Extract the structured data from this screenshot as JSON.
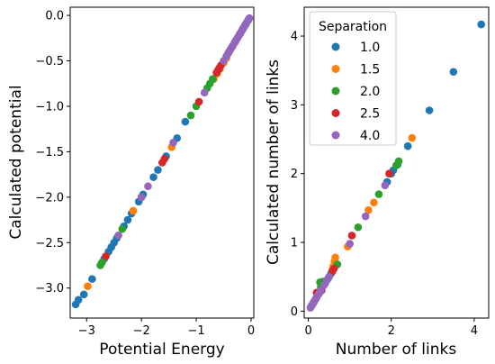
{
  "chart_data": [
    {
      "type": "scatter",
      "xlabel": "Potential Energy",
      "ylabel": "Calculated potential",
      "xlim": [
        -3.3,
        0.05
      ],
      "ylim": [
        -3.33,
        0.09
      ],
      "xticks": [
        -3,
        -2,
        -1,
        0
      ],
      "yticks": [
        -3.0,
        -2.5,
        -2.0,
        -1.5,
        -1.0,
        -0.5,
        0.0
      ],
      "xtick_labels": [
        "−3",
        "−2",
        "−1",
        "0"
      ],
      "ytick_labels": [
        "−3.0",
        "−2.5",
        "−2.0",
        "−1.5",
        "−1.0",
        "−0.5",
        "0.0"
      ],
      "grid": false,
      "series": [
        {
          "name": "1.0",
          "color": "#1f77b4",
          "x": [
            -3.2,
            -3.15,
            -3.05,
            -2.9,
            -2.68,
            -2.6,
            -2.55,
            -2.5,
            -2.45,
            -2.32,
            -2.25,
            -2.18,
            -2.05,
            -2.0,
            -1.97,
            -1.78,
            -1.7,
            -1.55,
            -1.35,
            -1.2,
            -0.35,
            -0.2,
            -0.15,
            -0.1,
            -0.05
          ],
          "y": [
            -3.18,
            -3.13,
            -3.07,
            -2.9,
            -2.68,
            -2.6,
            -2.55,
            -2.5,
            -2.45,
            -2.32,
            -2.25,
            -2.18,
            -2.05,
            -2.0,
            -1.97,
            -1.78,
            -1.7,
            -1.55,
            -1.35,
            -1.17,
            -0.35,
            -0.2,
            -0.15,
            -0.1,
            -0.05
          ]
        },
        {
          "name": "1.5",
          "color": "#ff7f0e",
          "x": [
            -2.98,
            -2.15,
            -1.45,
            -0.68,
            -0.62,
            -0.57,
            -0.5,
            -0.45,
            -0.3
          ],
          "y": [
            -2.98,
            -2.15,
            -1.45,
            -0.7,
            -0.64,
            -0.59,
            -0.52,
            -0.47,
            -0.3
          ]
        },
        {
          "name": "2.0",
          "color": "#2ca02c",
          "x": [
            -2.75,
            -2.72,
            -2.35,
            -1.1,
            -1.0,
            -0.8,
            -0.75,
            -0.7
          ],
          "y": [
            -2.75,
            -2.72,
            -2.35,
            -1.1,
            -1.0,
            -0.8,
            -0.75,
            -0.7
          ]
        },
        {
          "name": "2.5",
          "color": "#d62728",
          "x": [
            -2.65,
            -1.62,
            -1.58,
            -0.95,
            -0.63,
            -0.6,
            -0.58,
            -0.55
          ],
          "y": [
            -2.65,
            -1.62,
            -1.58,
            -0.95,
            -0.63,
            -0.6,
            -0.58,
            -0.55
          ]
        },
        {
          "name": "4.0",
          "color": "#9467bd",
          "x": [
            -2.42,
            -2.0,
            -1.88,
            -1.42,
            -0.85,
            -0.5,
            -0.45,
            -0.42,
            -0.4,
            -0.38,
            -0.35,
            -0.33,
            -0.3,
            -0.28,
            -0.26,
            -0.24,
            -0.22,
            -0.2,
            -0.18,
            -0.16,
            -0.14,
            -0.12,
            -0.1,
            -0.08,
            -0.06,
            -0.04,
            -0.03
          ],
          "y": [
            -2.42,
            -2.0,
            -1.88,
            -1.4,
            -0.85,
            -0.5,
            -0.45,
            -0.42,
            -0.4,
            -0.38,
            -0.35,
            -0.33,
            -0.3,
            -0.28,
            -0.26,
            -0.24,
            -0.22,
            -0.2,
            -0.18,
            -0.16,
            -0.14,
            -0.12,
            -0.1,
            -0.08,
            -0.06,
            -0.04,
            -0.03
          ]
        }
      ]
    },
    {
      "type": "scatter",
      "xlabel": "Number of links",
      "ylabel": "Calculated number of links",
      "xlim": [
        -0.1,
        4.35
      ],
      "ylim": [
        -0.1,
        4.42
      ],
      "xticks": [
        0,
        2,
        4
      ],
      "yticks": [
        0,
        1,
        2,
        3,
        4
      ],
      "xtick_labels": [
        "0",
        "2",
        "4"
      ],
      "ytick_labels": [
        "0",
        "1",
        "2",
        "3",
        "4"
      ],
      "grid": false,
      "legend": {
        "title": "Separation",
        "placement": "upper left"
      },
      "series": [
        {
          "name": "1.0",
          "color": "#1f77b4",
          "x": [
            4.17,
            3.5,
            2.92,
            2.4,
            2.15,
            2.05,
            2.0,
            1.9,
            0.55,
            0.48,
            0.4,
            0.32,
            0.25,
            0.18,
            0.12,
            0.08
          ],
          "y": [
            4.17,
            3.48,
            2.92,
            2.4,
            2.13,
            2.05,
            2.0,
            1.88,
            0.55,
            0.48,
            0.4,
            0.32,
            0.25,
            0.18,
            0.12,
            0.08
          ]
        },
        {
          "name": "1.5",
          "color": "#ff7f0e",
          "x": [
            2.5,
            1.58,
            1.45,
            0.95,
            0.65,
            0.63,
            0.6,
            0.58
          ],
          "y": [
            2.52,
            1.58,
            1.47,
            0.94,
            0.78,
            0.72,
            0.65,
            0.6
          ]
        },
        {
          "name": "2.0",
          "color": "#2ca02c",
          "x": [
            2.18,
            2.12,
            1.7,
            1.2,
            0.7,
            0.28,
            0.35,
            0.42,
            0.3
          ],
          "y": [
            2.18,
            2.12,
            1.7,
            1.22,
            0.68,
            0.42,
            0.43,
            0.44,
            0.35
          ]
        },
        {
          "name": "2.5",
          "color": "#d62728",
          "x": [
            1.95,
            1.05,
            0.62,
            0.58,
            0.2,
            0.32
          ],
          "y": [
            2.0,
            1.1,
            0.62,
            0.58,
            0.27,
            0.3
          ]
        },
        {
          "name": "4.0",
          "color": "#9467bd",
          "x": [
            1.85,
            1.38,
            1.0,
            0.5,
            0.45,
            0.38,
            0.3,
            0.25,
            0.2,
            0.17,
            0.14,
            0.12,
            0.1,
            0.08,
            0.06,
            0.05
          ],
          "y": [
            1.83,
            1.38,
            0.98,
            0.5,
            0.45,
            0.38,
            0.3,
            0.25,
            0.2,
            0.17,
            0.14,
            0.12,
            0.1,
            0.08,
            0.06,
            0.05
          ]
        }
      ]
    }
  ]
}
